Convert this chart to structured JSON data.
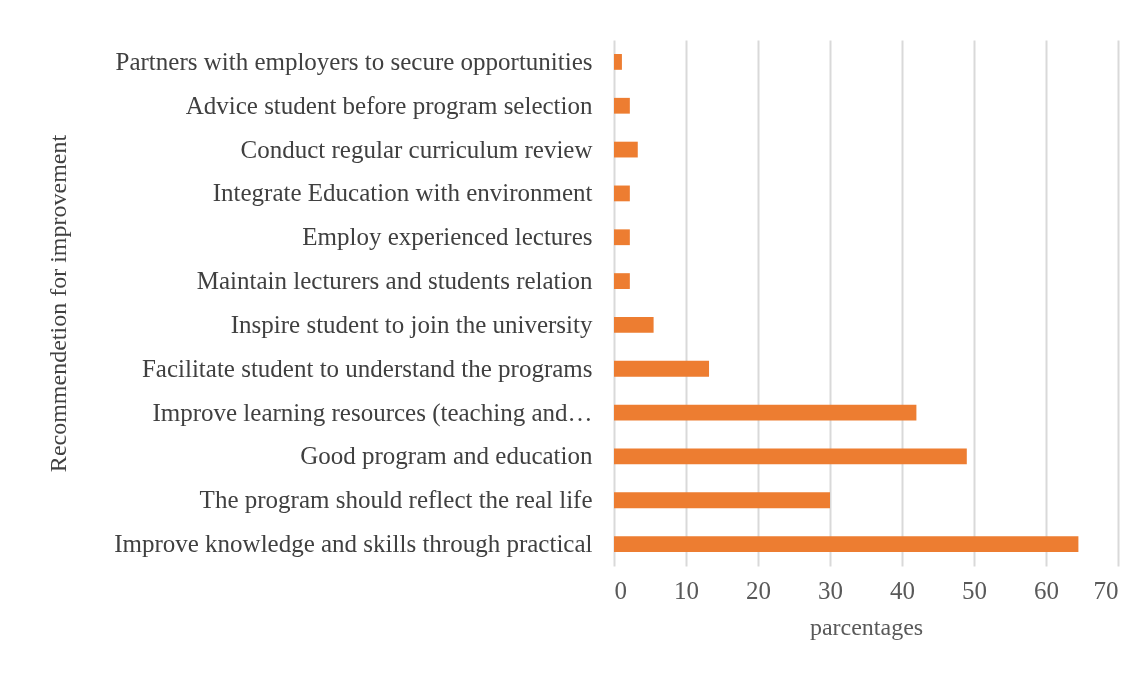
{
  "chart_data": {
    "type": "bar",
    "orientation": "horizontal",
    "xlabel": "parcentages",
    "ylabel": "Recommendetion for improvement",
    "categories": [
      "Partners with employers to secure opportunities",
      "Advice student before program selection",
      "Conduct regular curriculum review",
      "Integrate Education with environment",
      "Employ experienced lectures",
      "Maintain lecturers and students relation",
      "Inspire student to join the university",
      "Facilitate student to understand the programs",
      "Improve learning resources (teaching and…",
      "Good program and education",
      "The program should reflect the real life",
      "Improve knowledge and skills through practical"
    ],
    "values": [
      1.1,
      2.2,
      3.3,
      2.2,
      2.2,
      2.2,
      5.5,
      13.2,
      42,
      49,
      30,
      64.5
    ],
    "color": "#ed7d31",
    "xlim": [
      0,
      70
    ],
    "xticks": [
      0,
      10,
      20,
      30,
      40,
      50,
      60,
      70
    ],
    "grid": "x"
  }
}
